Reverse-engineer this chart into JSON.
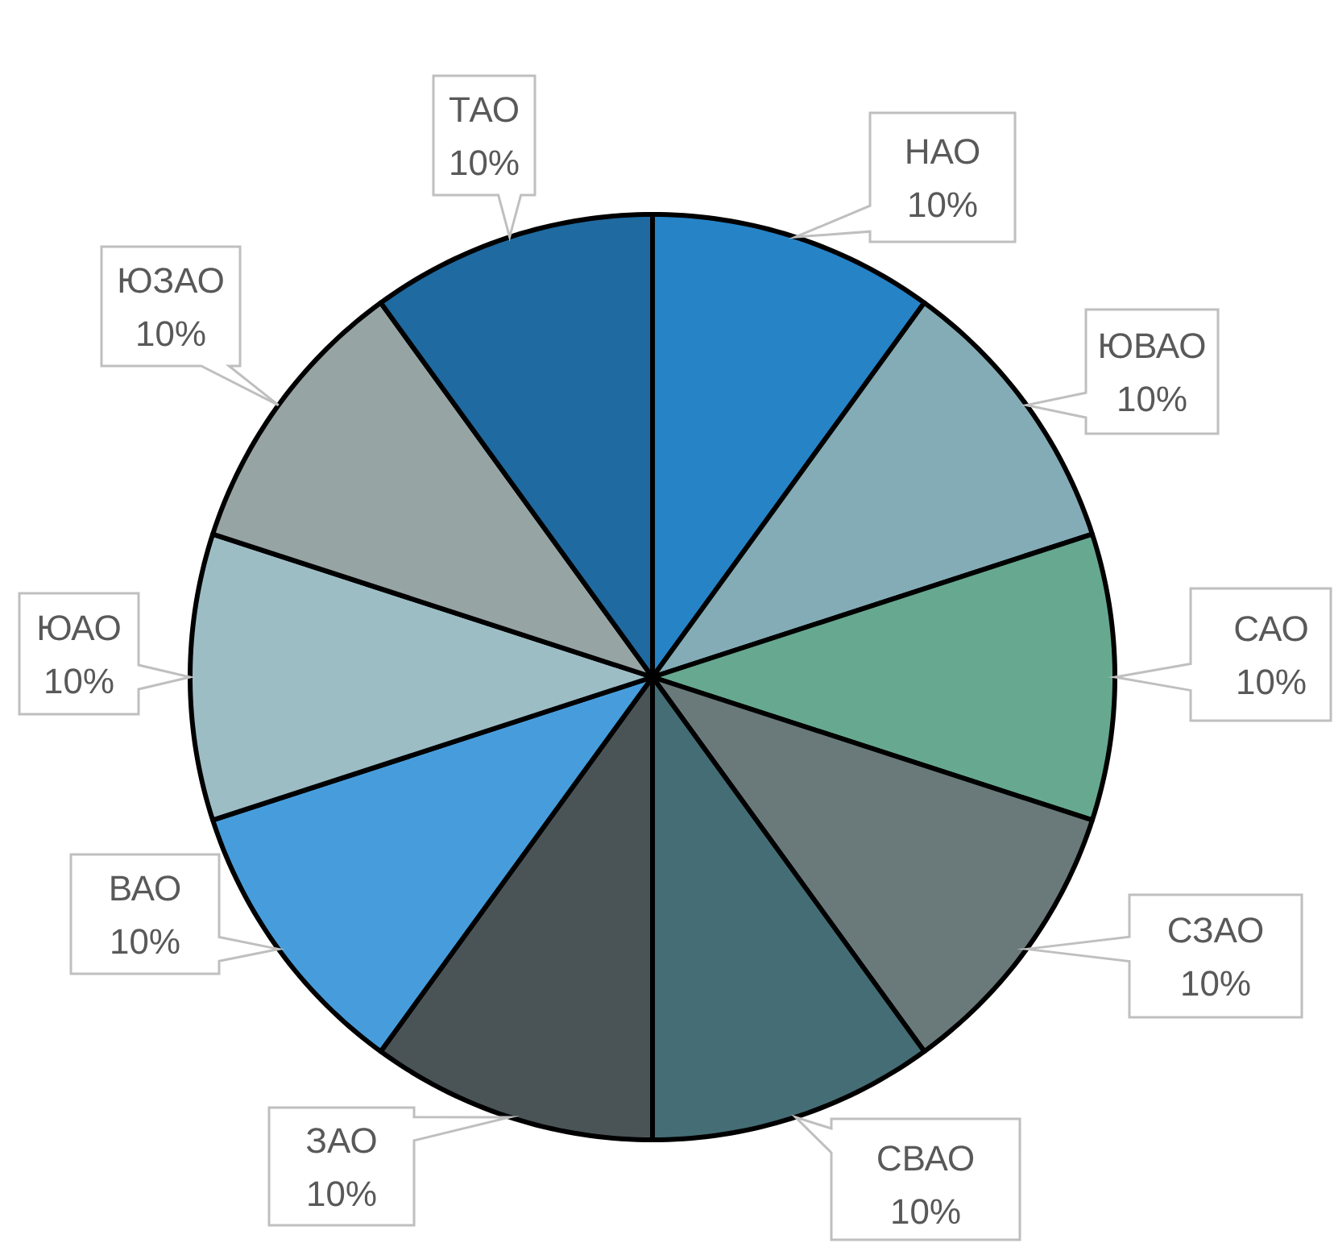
{
  "chart_data": {
    "type": "pie",
    "categories": [
      "НАО",
      "ЮВАО",
      "САО",
      "СЗАО",
      "СВАО",
      "ЗАО",
      "ВАО",
      "ЮАО",
      "ЮЗАО",
      "ТАО"
    ],
    "values": [
      10,
      10,
      10,
      10,
      10,
      10,
      10,
      10,
      10,
      10
    ],
    "value_labels": [
      "10%",
      "10%",
      "10%",
      "10%",
      "10%",
      "10%",
      "10%",
      "10%",
      "10%",
      "10%"
    ],
    "colors": [
      "#2683c6",
      "#84acb6",
      "#67a891",
      "#6a7a7b",
      "#456d75",
      "#4a5457",
      "#479ddb",
      "#9dbdc5",
      "#97a4a4",
      "#1f6aa0"
    ]
  }
}
